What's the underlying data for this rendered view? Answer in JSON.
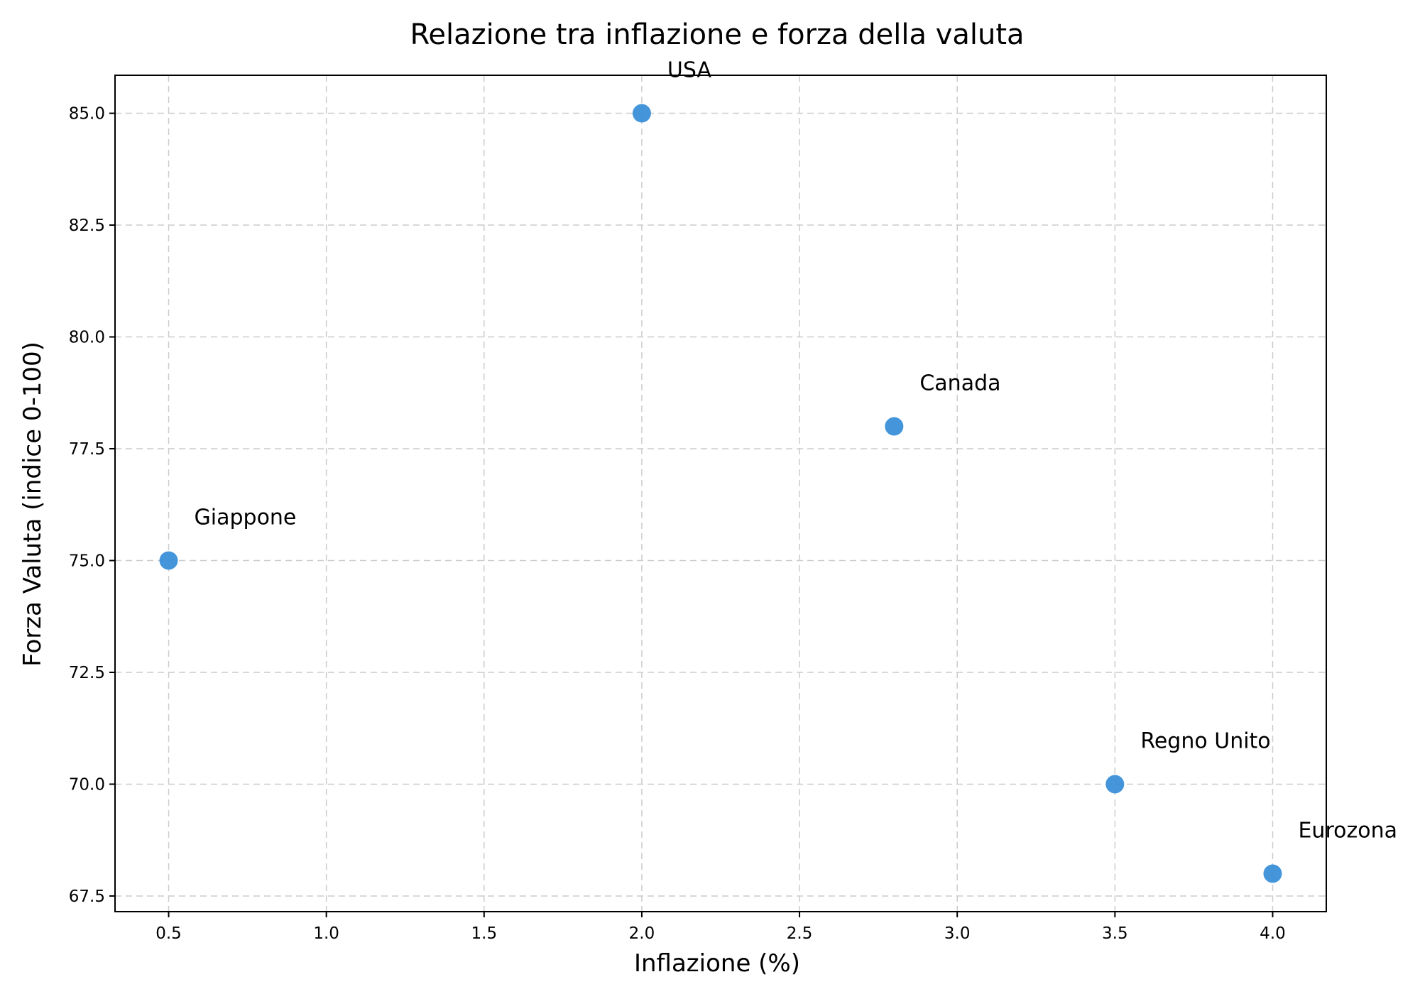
{
  "chart_data": {
    "type": "scatter",
    "title": "Relazione tra inflazione e forza della valuta",
    "xlabel": "Inflazione (%)",
    "ylabel": "Forza Valuta (indice 0-100)",
    "xlim": [
      0.33,
      4.17
    ],
    "ylim": [
      67.15,
      85.85
    ],
    "xticks": [
      "0.5",
      "1.0",
      "1.5",
      "2.0",
      "2.5",
      "3.0",
      "3.5",
      "4.0"
    ],
    "yticks": [
      "67.5",
      "70.0",
      "72.5",
      "75.0",
      "77.5",
      "80.0",
      "82.5",
      "85.0"
    ],
    "grid": true,
    "color": "#3a8fd8",
    "points": [
      {
        "label": "USA",
        "x": 2.0,
        "y": 85
      },
      {
        "label": "Giappone",
        "x": 0.5,
        "y": 75
      },
      {
        "label": "Eurozona",
        "x": 4.0,
        "y": 68
      },
      {
        "label": "Regno Unito",
        "x": 3.5,
        "y": 70
      },
      {
        "label": "Canada",
        "x": 2.8,
        "y": 78
      }
    ]
  }
}
